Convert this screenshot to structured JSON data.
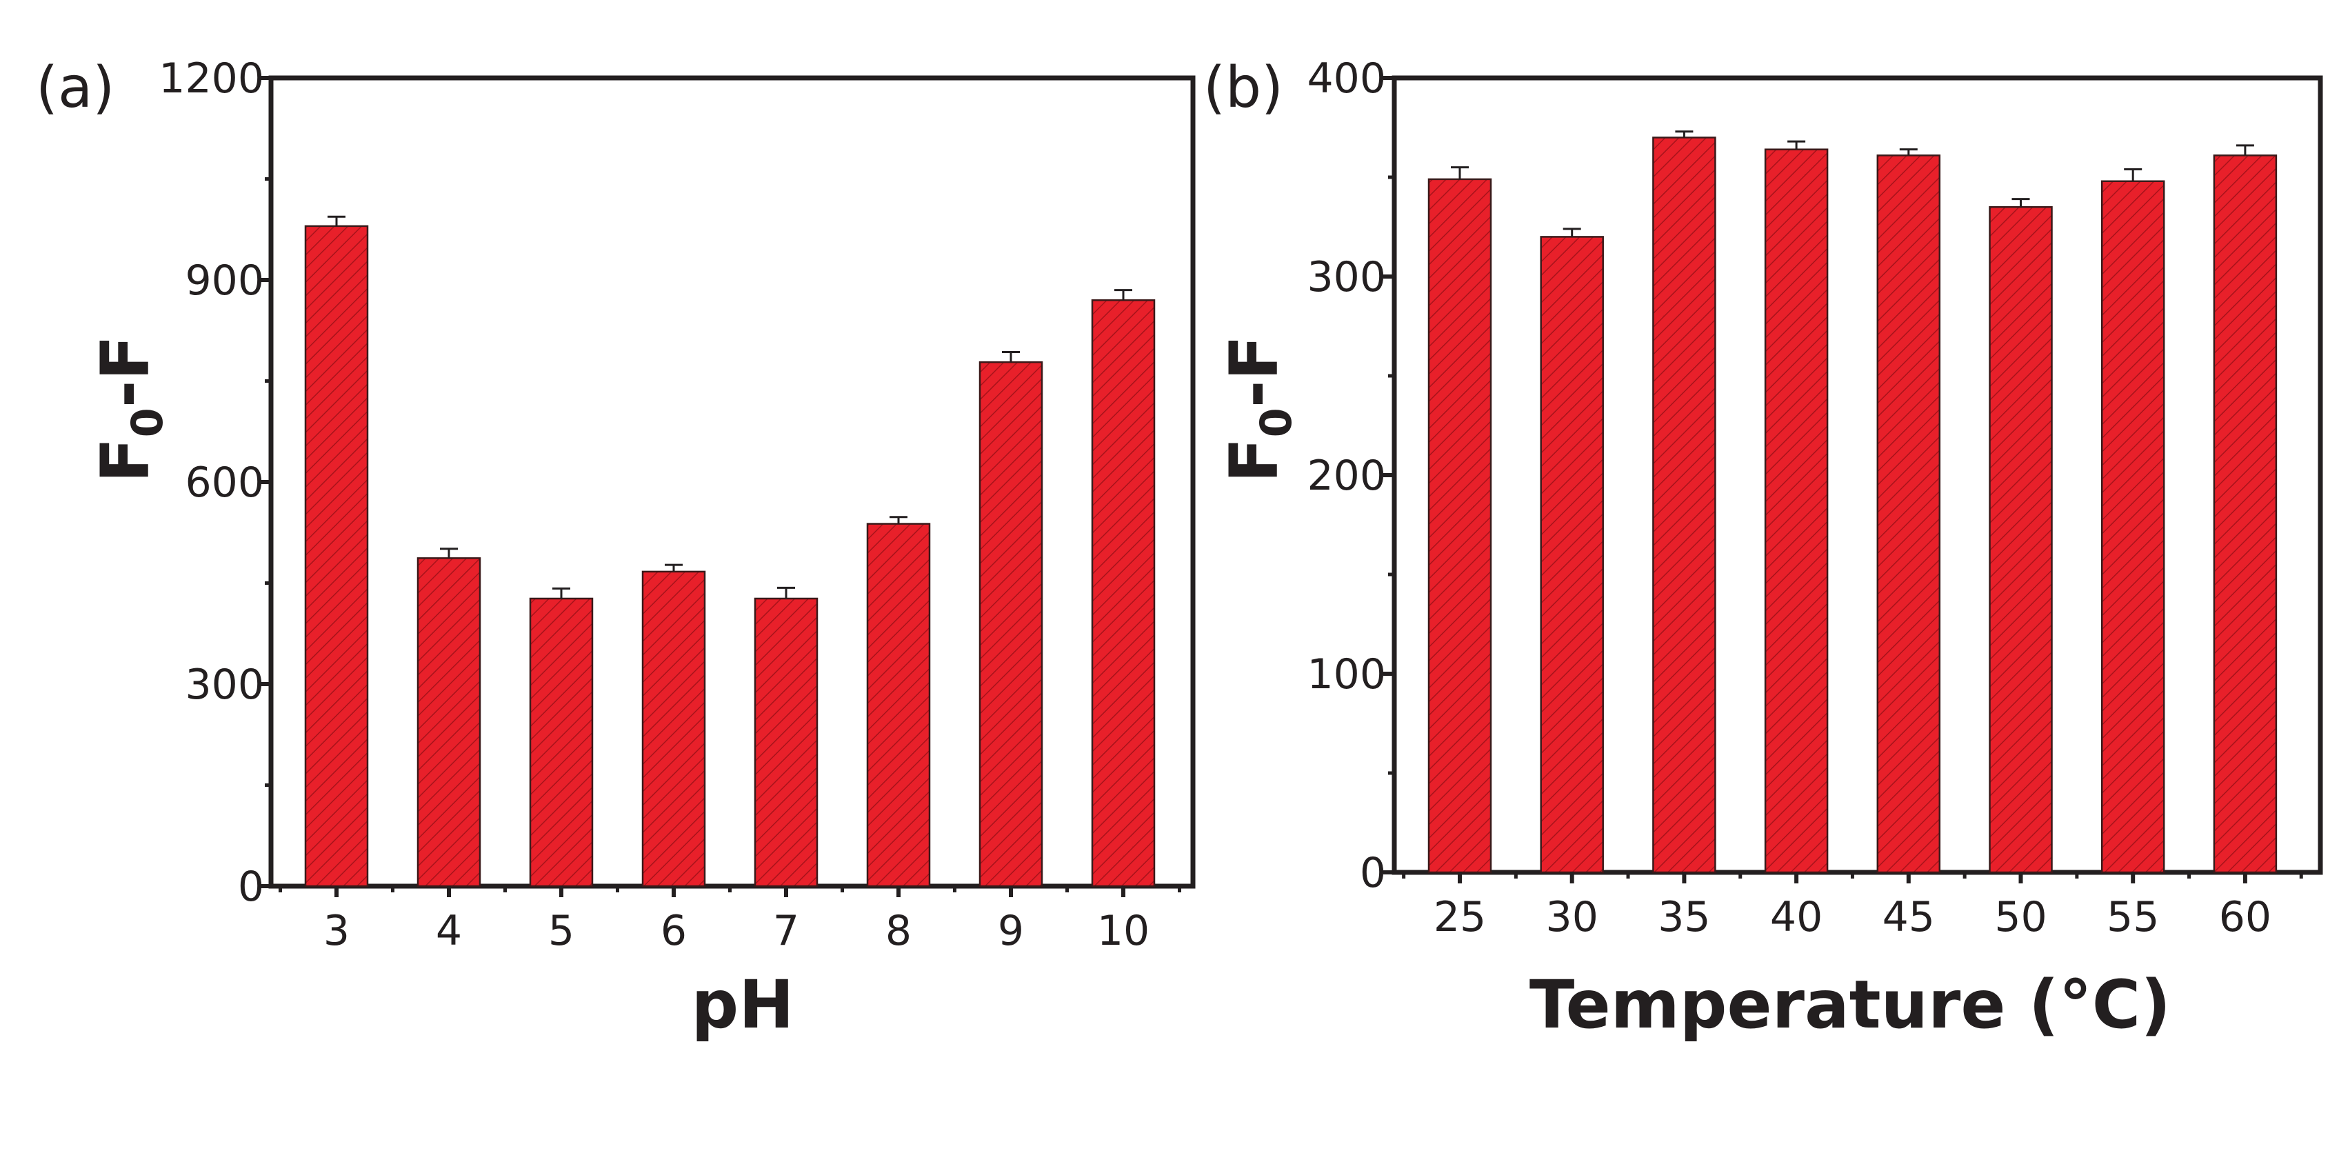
{
  "chart_data": [
    {
      "type": "bar",
      "panel_label": "(a)",
      "title": "",
      "xlabel": "pH",
      "ylabel": {
        "main": "F",
        "subscript": "0",
        "rest": "-F"
      },
      "categories": [
        "3",
        "4",
        "5",
        "6",
        "7",
        "8",
        "9",
        "10"
      ],
      "series": [
        {
          "values": [
            980,
            487,
            427,
            467,
            427,
            538,
            778,
            870
          ],
          "errors": [
            14,
            14,
            15,
            10,
            16,
            10,
            15,
            15
          ],
          "color": "#e8202a",
          "pattern": "diagonal-hatch"
        }
      ],
      "ylim": [
        0,
        1200
      ],
      "yticks": [
        0,
        300,
        600,
        900,
        1200
      ],
      "grid": false,
      "legend": "none"
    },
    {
      "type": "bar",
      "panel_label": "(b)",
      "title": "",
      "xlabel": "Temperature (°C)",
      "ylabel": {
        "main": "F",
        "subscript": "0",
        "rest": "-F"
      },
      "categories": [
        "25",
        "30",
        "35",
        "40",
        "45",
        "50",
        "55",
        "60"
      ],
      "series": [
        {
          "values": [
            349,
            320,
            370,
            364,
            361,
            335,
            348,
            361
          ],
          "errors": [
            6,
            4,
            3,
            4,
            3,
            4,
            6,
            5
          ],
          "color": "#e8202a",
          "pattern": "diagonal-hatch"
        }
      ],
      "ylim": [
        0,
        400
      ],
      "yticks": [
        0,
        100,
        200,
        300,
        400
      ],
      "grid": false,
      "legend": "none"
    }
  ]
}
